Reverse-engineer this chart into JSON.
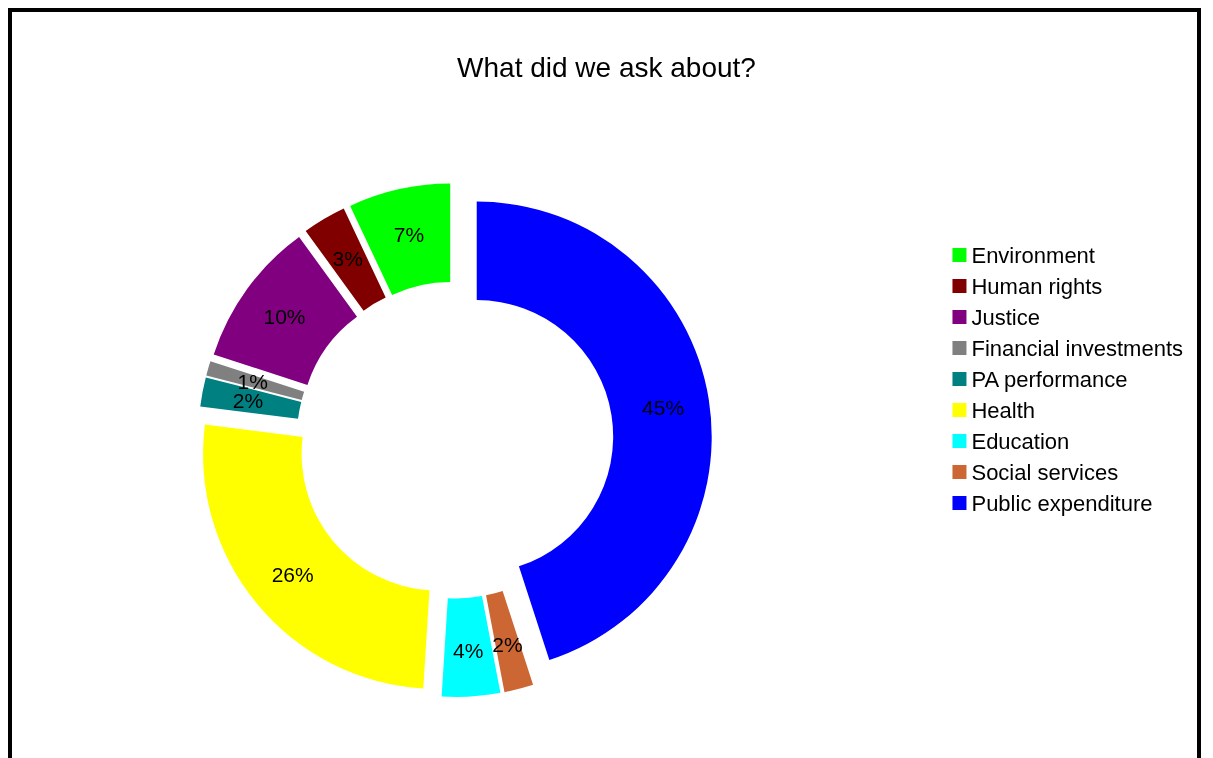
{
  "chart_data": {
    "type": "donut",
    "title": "What did we ask about?",
    "categories": [
      "Environment",
      "Human rights",
      "Justice",
      "Financial investments",
      "PA performance",
      "Health",
      "Education",
      "Social services",
      "Public expenditure"
    ],
    "values": [
      7,
      3,
      10,
      1,
      2,
      26,
      4,
      2,
      45
    ],
    "colors": [
      "#00ff00",
      "#800000",
      "#800080",
      "#808080",
      "#008080",
      "#ffff00",
      "#00ffff",
      "#cc6633",
      "#0000ff"
    ],
    "value_labels": [
      "7%",
      "3%",
      "10%",
      "1%",
      "2%",
      "26%",
      "4%",
      "2%",
      "45%"
    ],
    "legend": "right"
  }
}
